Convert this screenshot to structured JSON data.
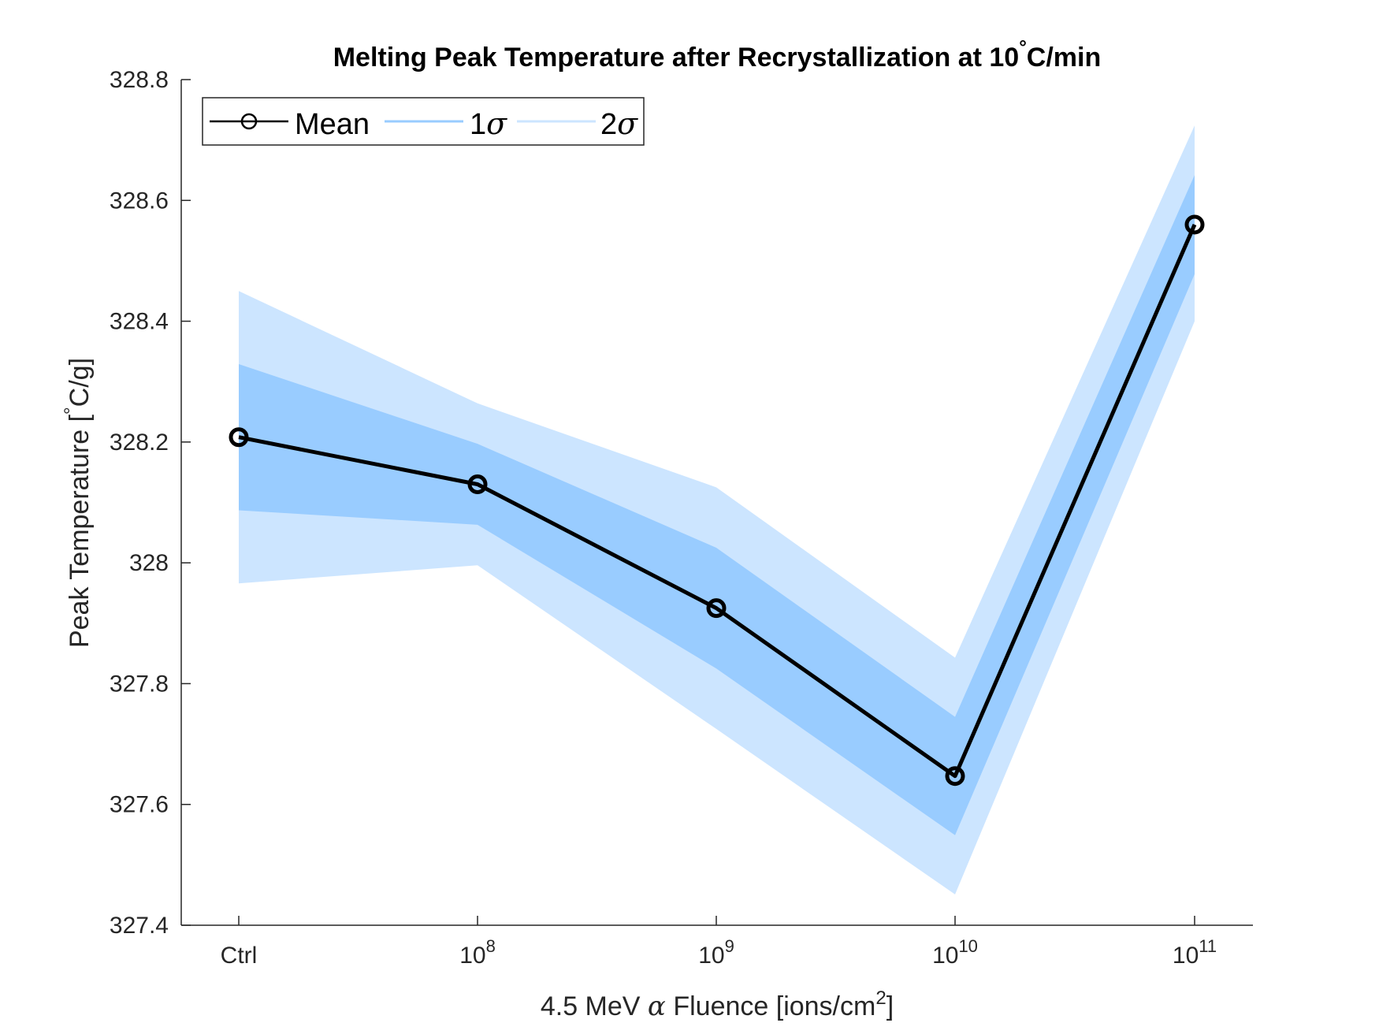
{
  "chart_data": {
    "type": "line",
    "title": "Melting Peak Temperature after Recrystallization at 10°C/min",
    "title_parts": {
      "main": "Melting Peak Temperature after Recrystallization at 10",
      "degree": "°",
      "tail": "C/min"
    },
    "xlabel": "4.5 MeV α Fluence [ions/cm2]",
    "xlabel_parts": {
      "pre": "4.5 MeV ",
      "greek": "α",
      "post": " Fluence [ions/cm",
      "sup": "2",
      "end": "]"
    },
    "ylabel": "Peak Temperature [°C/g]",
    "ylabel_parts": {
      "pre": "Peak Temperature [",
      "degree": "°",
      "post": "C/g]"
    },
    "categories": [
      "Ctrl",
      "10^8",
      "10^9",
      "10^10",
      "10^11"
    ],
    "x_tick_labels": [
      {
        "base": "Ctrl",
        "exp": ""
      },
      {
        "base": "10",
        "exp": "8"
      },
      {
        "base": "10",
        "exp": "9"
      },
      {
        "base": "10",
        "exp": "10"
      },
      {
        "base": "10",
        "exp": "11"
      }
    ],
    "ylim": [
      327.4,
      328.8
    ],
    "y_ticks": [
      327.4,
      327.6,
      327.8,
      328,
      328.2,
      328.4,
      328.6,
      328.8
    ],
    "y_tick_labels": [
      "327.4",
      "327.6",
      "327.8",
      "328",
      "328.2",
      "328.4",
      "328.6",
      "328.8"
    ],
    "grid": false,
    "legend": {
      "placement": "top-left",
      "entries": [
        {
          "label": "Mean",
          "greek": ""
        },
        {
          "label": "1",
          "greek": "σ"
        },
        {
          "label": "2",
          "greek": "σ"
        }
      ]
    },
    "series": [
      {
        "name": "Mean",
        "values": [
          328.208,
          328.13,
          327.925,
          327.647,
          328.56
        ],
        "color": "#000000",
        "marker": "circle"
      },
      {
        "name": "1σ",
        "lower": [
          328.087,
          328.063,
          327.825,
          327.549,
          328.478
        ],
        "upper": [
          328.329,
          328.197,
          328.025,
          327.745,
          328.642
        ],
        "color": "#99ccff"
      },
      {
        "name": "2σ",
        "lower": [
          327.966,
          327.996,
          327.725,
          327.451,
          328.4
        ],
        "upper": [
          328.45,
          328.264,
          328.125,
          327.843,
          328.724
        ],
        "color": "#cce5ff"
      }
    ]
  }
}
